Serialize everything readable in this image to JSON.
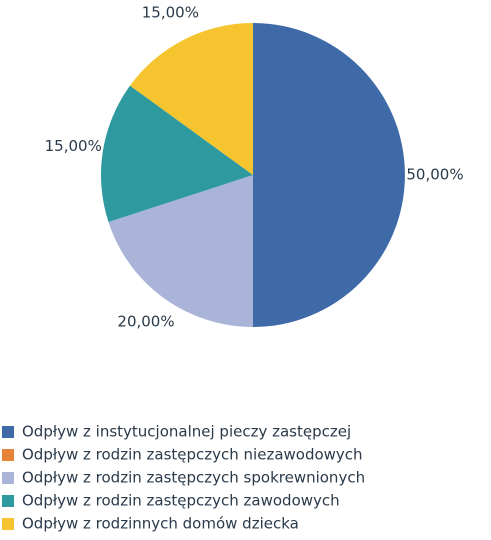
{
  "chart_data": {
    "type": "pie",
    "categories": [
      "Odpływ z instytucjonalnej pieczy zastępczej",
      "Odpływ z rodzin zastępczych niezawodowych",
      "Odpływ z rodzin zastępczych spokrewnionych",
      "Odpływ z rodzin zastępczych zawodowych",
      "Odpływ z rodzinnych domów dziecka"
    ],
    "values": [
      50,
      0,
      20,
      15,
      15
    ],
    "value_labels": [
      "50,00%",
      null,
      "20,00%",
      "15,00%",
      "15,00%"
    ],
    "colors": [
      "#3f6aa8",
      "#e8833a",
      "#aab3d8",
      "#2e9aa0",
      "#f6c42e"
    ],
    "legend": "bottom-left"
  }
}
